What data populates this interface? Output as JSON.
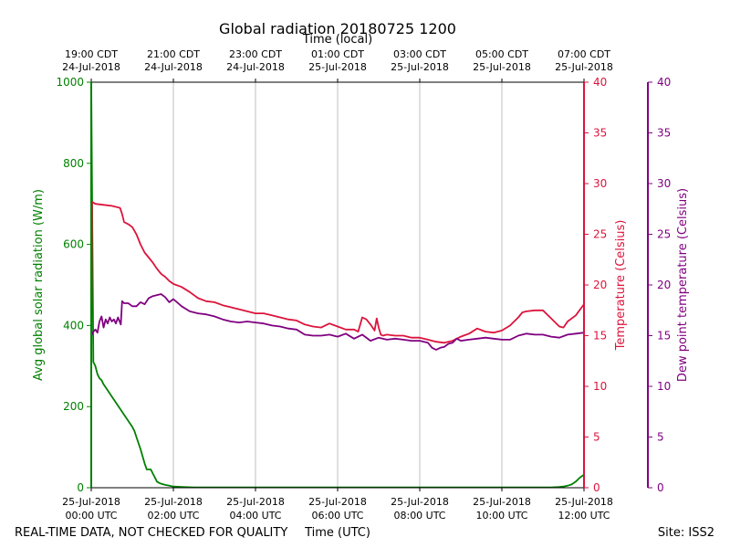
{
  "chart_data": {
    "type": "line",
    "title": "Global radiation 20180725 1200",
    "top_axis_label": "Time (local)",
    "xlabel": "Time (UTC)",
    "footer_left": "REAL-TIME DATA, NOT CHECKED FOR QUALITY",
    "footer_right": "Site: ISS2",
    "xlim": [
      0,
      12
    ],
    "grid": true,
    "bottom_ticks": [
      {
        "x": 0,
        "line1": "25-Jul-2018",
        "line2": "00:00 UTC"
      },
      {
        "x": 2,
        "line1": "25-Jul-2018",
        "line2": "02:00 UTC"
      },
      {
        "x": 4,
        "line1": "25-Jul-2018",
        "line2": "04:00 UTC"
      },
      {
        "x": 6,
        "line1": "25-Jul-2018",
        "line2": "06:00 UTC"
      },
      {
        "x": 8,
        "line1": "25-Jul-2018",
        "line2": "08:00 UTC"
      },
      {
        "x": 10,
        "line1": "25-Jul-2018",
        "line2": "10:00 UTC"
      },
      {
        "x": 12,
        "line1": "25-Jul-2018",
        "line2": "12:00 UTC"
      }
    ],
    "top_ticks": [
      {
        "x": 0,
        "line1": "19:00 CDT",
        "line2": "24-Jul-2018"
      },
      {
        "x": 2,
        "line1": "21:00 CDT",
        "line2": "24-Jul-2018"
      },
      {
        "x": 4,
        "line1": "23:00 CDT",
        "line2": "24-Jul-2018"
      },
      {
        "x": 6,
        "line1": "01:00 CDT",
        "line2": "25-Jul-2018"
      },
      {
        "x": 8,
        "line1": "03:00 CDT",
        "line2": "25-Jul-2018"
      },
      {
        "x": 10,
        "line1": "05:00 CDT",
        "line2": "25-Jul-2018"
      },
      {
        "x": 12,
        "line1": "07:00 CDT",
        "line2": "25-Jul-2018"
      }
    ],
    "axes": {
      "radiation": {
        "label": "Avg global solar radiation (W/m)",
        "ylim": [
          0,
          1000
        ],
        "ticks": [
          0,
          200,
          400,
          600,
          800,
          1000
        ],
        "color": "#008000"
      },
      "temperature": {
        "label": "Temperature (Celsius)",
        "ylim": [
          0,
          40
        ],
        "ticks": [
          0,
          5,
          10,
          15,
          20,
          25,
          30,
          35,
          40
        ],
        "color": "#dc143c"
      },
      "dewpoint": {
        "label": "Dew point temperature (Celsius)",
        "ylim": [
          0,
          40
        ],
        "ticks": [
          0,
          5,
          10,
          15,
          20,
          25,
          30,
          35,
          40
        ],
        "color": "#800080"
      }
    },
    "series": [
      {
        "name": "Avg global solar radiation",
        "axis": "radiation",
        "color": "#008000",
        "x": [
          0,
          0.05,
          0.1,
          0.15,
          0.2,
          0.25,
          0.3,
          0.4,
          0.5,
          0.6,
          0.7,
          0.8,
          0.9,
          1.0,
          1.05,
          1.1,
          1.2,
          1.3,
          1.35,
          1.4,
          1.45,
          1.5,
          1.55,
          1.6,
          1.65,
          1.7,
          1.8,
          1.9,
          2.0,
          2.2,
          2.5,
          3.0,
          4.0,
          5.0,
          6.0,
          7.0,
          8.0,
          9.0,
          10.0,
          10.5,
          11.0,
          11.2,
          11.4,
          11.5,
          11.6,
          11.7,
          11.8,
          11.9,
          12.0
        ],
        "values": [
          1000,
          310,
          300,
          280,
          270,
          265,
          255,
          240,
          225,
          210,
          195,
          180,
          165,
          150,
          140,
          125,
          95,
          60,
          45,
          45,
          45,
          35,
          25,
          15,
          12,
          10,
          7,
          5,
          3,
          2,
          1,
          1,
          1,
          1,
          1,
          1,
          1,
          1,
          1,
          1,
          1,
          1,
          2,
          3,
          5,
          8,
          15,
          25,
          32
        ]
      },
      {
        "name": "Temperature",
        "axis": "temperature",
        "color": "#dc143c",
        "x": [
          0,
          0.02,
          0.1,
          0.3,
          0.5,
          0.7,
          0.75,
          0.8,
          0.9,
          1.0,
          1.1,
          1.2,
          1.3,
          1.4,
          1.5,
          1.6,
          1.7,
          1.8,
          1.9,
          2.0,
          2.2,
          2.4,
          2.6,
          2.8,
          3.0,
          3.2,
          3.4,
          3.6,
          3.8,
          4.0,
          4.2,
          4.4,
          4.6,
          4.8,
          5.0,
          5.2,
          5.4,
          5.6,
          5.8,
          6.0,
          6.2,
          6.4,
          6.5,
          6.6,
          6.7,
          6.8,
          6.9,
          6.95,
          7.0,
          7.05,
          7.1,
          7.2,
          7.4,
          7.6,
          7.8,
          8.0,
          8.2,
          8.4,
          8.6,
          8.8,
          9.0,
          9.2,
          9.4,
          9.6,
          9.8,
          10.0,
          10.2,
          10.4,
          10.5,
          10.6,
          10.8,
          11.0,
          11.2,
          11.4,
          11.5,
          11.6,
          11.8,
          12.0
        ],
        "values": [
          15,
          28.2,
          28.0,
          27.9,
          27.8,
          27.6,
          27.0,
          26.2,
          26.0,
          25.7,
          25.0,
          24.0,
          23.2,
          22.7,
          22.2,
          21.6,
          21.1,
          20.8,
          20.4,
          20.1,
          19.8,
          19.3,
          18.7,
          18.4,
          18.3,
          18.0,
          17.8,
          17.6,
          17.4,
          17.2,
          17.2,
          17.0,
          16.8,
          16.6,
          16.5,
          16.1,
          15.9,
          15.8,
          16.2,
          15.9,
          15.6,
          15.6,
          15.4,
          16.8,
          16.6,
          16.1,
          15.5,
          16.7,
          15.8,
          15.1,
          15.0,
          15.1,
          15.0,
          15.0,
          14.8,
          14.8,
          14.6,
          14.4,
          14.3,
          14.5,
          14.9,
          15.2,
          15.7,
          15.4,
          15.3,
          15.5,
          16.0,
          16.8,
          17.3,
          17.4,
          17.5,
          17.5,
          16.7,
          15.9,
          15.8,
          16.4,
          17.0,
          18.1
        ]
      },
      {
        "name": "Dew point temperature",
        "axis": "dewpoint",
        "color": "#800080",
        "x": [
          0,
          0.05,
          0.1,
          0.15,
          0.2,
          0.25,
          0.3,
          0.35,
          0.4,
          0.45,
          0.5,
          0.55,
          0.6,
          0.65,
          0.7,
          0.72,
          0.75,
          0.8,
          0.9,
          1.0,
          1.1,
          1.2,
          1.3,
          1.4,
          1.5,
          1.6,
          1.7,
          1.8,
          1.9,
          2.0,
          2.2,
          2.4,
          2.6,
          2.8,
          3.0,
          3.2,
          3.4,
          3.6,
          3.8,
          4.0,
          4.2,
          4.4,
          4.6,
          4.8,
          5.0,
          5.2,
          5.4,
          5.6,
          5.8,
          6.0,
          6.2,
          6.4,
          6.6,
          6.8,
          7.0,
          7.2,
          7.4,
          7.6,
          7.8,
          8.0,
          8.2,
          8.3,
          8.4,
          8.5,
          8.6,
          8.7,
          8.8,
          8.9,
          9.0,
          9.2,
          9.4,
          9.6,
          9.8,
          10.0,
          10.2,
          10.4,
          10.6,
          10.8,
          11.0,
          11.2,
          11.4,
          11.6,
          11.8,
          12.0
        ],
        "values": [
          15.0,
          15.4,
          15.6,
          15.3,
          16.4,
          16.9,
          15.8,
          16.6,
          16.2,
          16.8,
          16.4,
          16.6,
          16.2,
          16.8,
          16.3,
          16.1,
          18.4,
          18.2,
          18.2,
          17.9,
          17.9,
          18.3,
          18.1,
          18.7,
          18.9,
          19.0,
          19.1,
          18.8,
          18.3,
          18.6,
          17.9,
          17.4,
          17.2,
          17.1,
          16.9,
          16.6,
          16.4,
          16.3,
          16.4,
          16.3,
          16.2,
          16.0,
          15.9,
          15.7,
          15.6,
          15.1,
          15.0,
          15.0,
          15.1,
          14.9,
          15.2,
          14.7,
          15.1,
          14.5,
          14.8,
          14.6,
          14.7,
          14.6,
          14.5,
          14.5,
          14.3,
          13.8,
          13.6,
          13.8,
          13.9,
          14.2,
          14.3,
          14.7,
          14.5,
          14.6,
          14.7,
          14.8,
          14.7,
          14.6,
          14.6,
          15.0,
          15.2,
          15.1,
          15.1,
          14.9,
          14.8,
          15.1,
          15.2,
          15.3
        ]
      }
    ]
  }
}
